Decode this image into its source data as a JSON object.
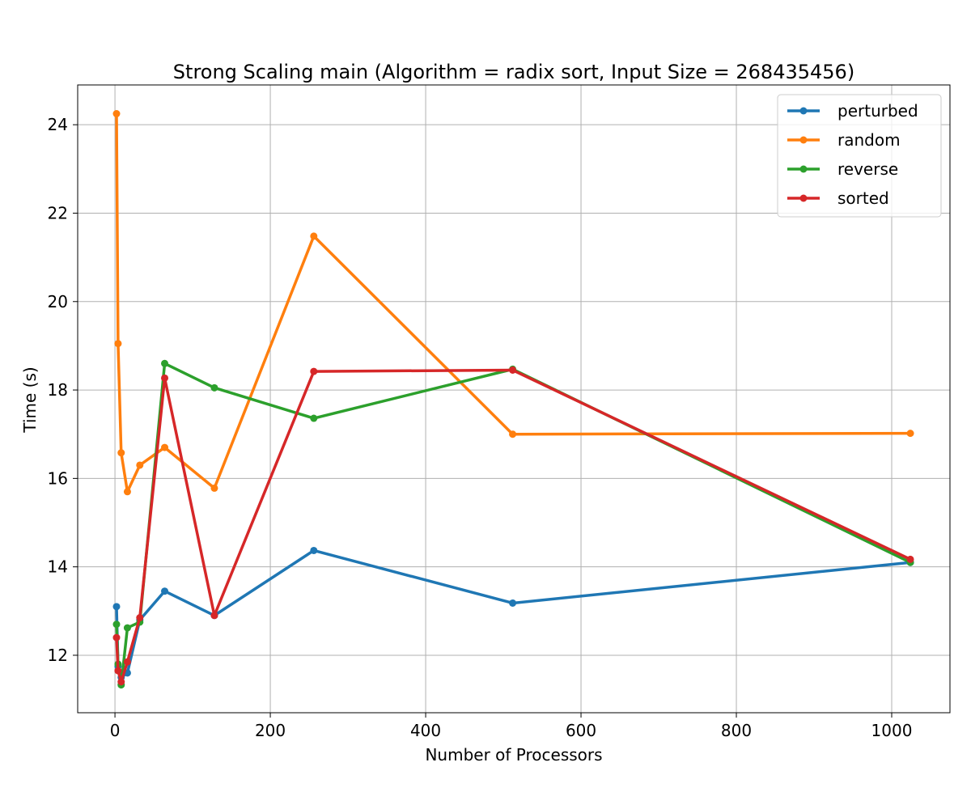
{
  "chart_data": {
    "type": "line",
    "title": "Strong Scaling main (Algorithm = radix sort, Input Size = 268435456)",
    "xlabel": "Number of Processors",
    "ylabel": "Time (s)",
    "xlim": [
      -48,
      1075
    ],
    "ylim": [
      10.7,
      24.9
    ],
    "xticks": [
      0,
      200,
      400,
      600,
      800,
      1000
    ],
    "yticks": [
      12,
      14,
      16,
      18,
      20,
      22,
      24
    ],
    "grid": true,
    "legend_position": "top-right",
    "x": [
      2,
      4,
      8,
      16,
      32,
      64,
      128,
      256,
      512,
      1024
    ],
    "series": [
      {
        "name": "perturbed",
        "color": "#1f77b4",
        "values": [
          13.1,
          11.75,
          11.5,
          11.6,
          12.8,
          13.45,
          12.9,
          14.37,
          13.18,
          14.1
        ]
      },
      {
        "name": "random",
        "color": "#ff7f0e",
        "values": [
          24.25,
          19.05,
          16.58,
          15.7,
          16.3,
          16.7,
          15.78,
          21.48,
          17.0,
          17.02
        ]
      },
      {
        "name": "reverse",
        "color": "#2ca02c",
        "values": [
          12.7,
          11.8,
          11.33,
          12.62,
          12.75,
          18.6,
          18.05,
          17.36,
          18.47,
          14.1
        ]
      },
      {
        "name": "sorted",
        "color": "#d62728",
        "values": [
          12.4,
          11.65,
          11.4,
          11.85,
          12.85,
          18.27,
          12.9,
          18.42,
          18.45,
          14.17
        ]
      }
    ]
  }
}
